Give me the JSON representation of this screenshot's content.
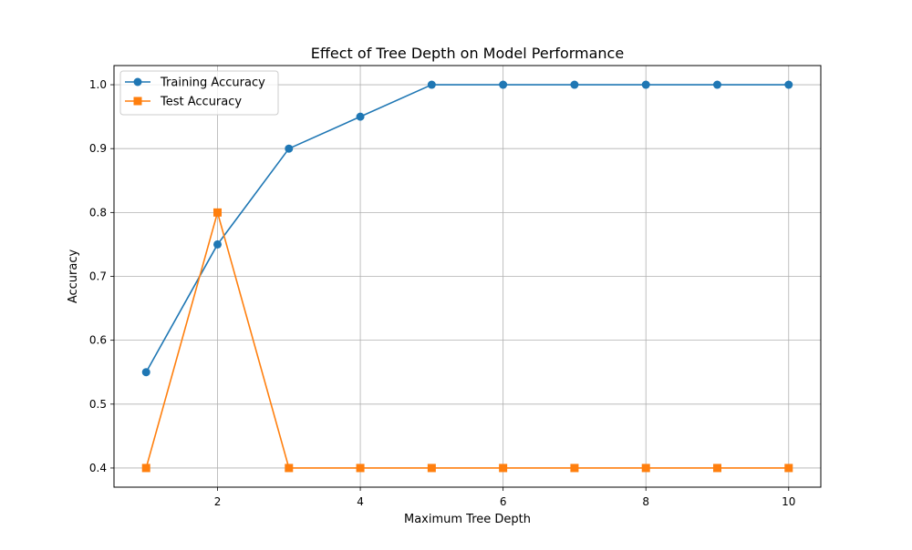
{
  "chart_data": {
    "type": "line",
    "title": "Effect of Tree Depth on Model Performance",
    "xlabel": "Maximum Tree Depth",
    "ylabel": "Accuracy",
    "x": [
      1,
      2,
      3,
      4,
      5,
      6,
      7,
      8,
      9,
      10
    ],
    "xlim": [
      0.55,
      10.45
    ],
    "ylim": [
      0.37,
      1.03
    ],
    "xticks": [
      2,
      4,
      6,
      8,
      10
    ],
    "xtick_labels": [
      "2",
      "4",
      "6",
      "8",
      "10"
    ],
    "yticks": [
      0.4,
      0.5,
      0.6,
      0.7,
      0.8,
      0.9,
      1.0
    ],
    "ytick_labels": [
      "0.4",
      "0.5",
      "0.6",
      "0.7",
      "0.8",
      "0.9",
      "1.0"
    ],
    "grid": true,
    "legend_position": "upper left",
    "series": [
      {
        "name": "Training Accuracy",
        "marker": "circle",
        "color": "#1f77b4",
        "values": [
          0.55,
          0.75,
          0.9,
          0.95,
          1.0,
          1.0,
          1.0,
          1.0,
          1.0,
          1.0
        ]
      },
      {
        "name": "Test Accuracy",
        "marker": "square",
        "color": "#ff7f0e",
        "values": [
          0.4,
          0.8,
          0.4,
          0.4,
          0.4,
          0.4,
          0.4,
          0.4,
          0.4,
          0.4
        ]
      }
    ]
  }
}
